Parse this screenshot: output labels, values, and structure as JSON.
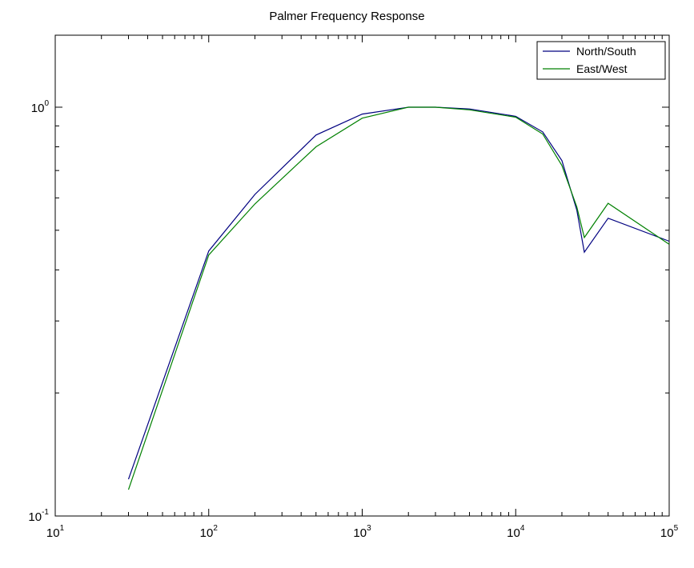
{
  "chart_data": {
    "type": "line",
    "title": "Palmer Frequency Response",
    "xscale": "log",
    "yscale": "log",
    "xlim": [
      10,
      100000
    ],
    "ylim": [
      0.1,
      1.5
    ],
    "x_ticks": [
      {
        "value": 10,
        "base": "10",
        "exp": "1"
      },
      {
        "value": 100,
        "base": "10",
        "exp": "2"
      },
      {
        "value": 1000,
        "base": "10",
        "exp": "3"
      },
      {
        "value": 10000,
        "base": "10",
        "exp": "4"
      },
      {
        "value": 100000,
        "base": "10",
        "exp": "5"
      }
    ],
    "y_ticks": [
      {
        "value": 0.1,
        "base": "10",
        "exp": "-1"
      },
      {
        "value": 1,
        "base": "10",
        "exp": "0"
      }
    ],
    "grid": false,
    "legend_position": "top-right",
    "series": [
      {
        "name": "North/South",
        "color": "#000080",
        "x": [
          30,
          100,
          200,
          500,
          1000,
          2000,
          3000,
          5000,
          10000,
          15000,
          20000,
          25000,
          28000,
          40000,
          100000
        ],
        "y": [
          0.123,
          0.445,
          0.612,
          0.855,
          0.962,
          1.0,
          1.0,
          0.99,
          0.95,
          0.87,
          0.74,
          0.56,
          0.442,
          0.535,
          0.47
        ]
      },
      {
        "name": "East/West",
        "color": "#008000",
        "x": [
          30,
          100,
          200,
          500,
          1000,
          2000,
          3000,
          5000,
          10000,
          15000,
          20000,
          25000,
          28000,
          40000,
          100000
        ],
        "y": [
          0.116,
          0.435,
          0.58,
          0.8,
          0.94,
          1.0,
          1.0,
          0.985,
          0.945,
          0.86,
          0.72,
          0.57,
          0.48,
          0.582,
          0.462
        ]
      }
    ]
  }
}
